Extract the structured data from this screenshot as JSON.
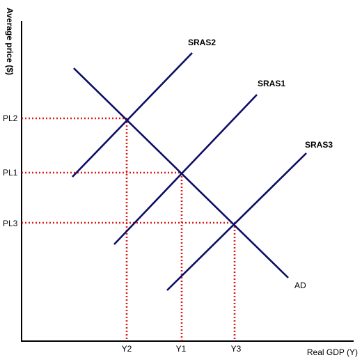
{
  "axes": {
    "y_label": "Average price ($)",
    "x_label": "Real GDP (Y)"
  },
  "price_levels": {
    "pl2": "PL2",
    "pl1": "PL1",
    "pl3": "PL3"
  },
  "outputs": {
    "y2": "Y2",
    "y1": "Y1",
    "y3": "Y3"
  },
  "curves": {
    "sras2": "SRAS2",
    "sras1": "SRAS1",
    "sras3": "SRAS3",
    "ad": "AD"
  },
  "colors": {
    "curve": "#0d0d66",
    "guide": "#e01818",
    "axis": "#000000"
  }
}
